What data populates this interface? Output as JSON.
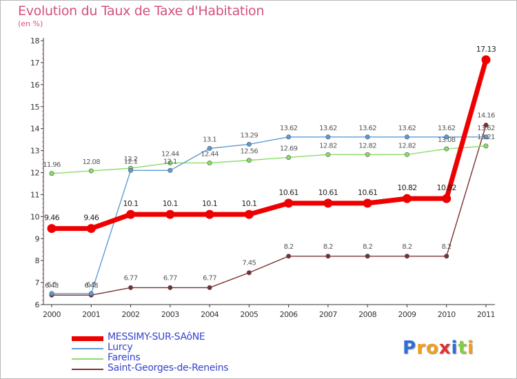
{
  "title": "Evolution du Taux de Taxe d'Habitation",
  "unit": "(en %)",
  "logo": [
    "P",
    "r",
    "o",
    "x",
    "i",
    "t",
    "i"
  ],
  "chart_data": {
    "type": "line",
    "title": "Evolution du Taux de Taxe d'Habitation",
    "ylabel": "(en %)",
    "x": [
      "2000",
      "2001",
      "2002",
      "2003",
      "2004",
      "2005",
      "2006",
      "2007",
      "2008",
      "2009",
      "2010",
      "2011"
    ],
    "yticks": [
      "6",
      "7",
      "8",
      "9",
      "10",
      "11",
      "12",
      "13",
      "14",
      "15",
      "16",
      "17",
      "18"
    ],
    "ylim": [
      6,
      18
    ],
    "grid": false,
    "legend": "bottom-left",
    "series": [
      {
        "name": "MESSIMY-SUR-SAôNE",
        "color": "#ee0000",
        "values": [
          9.46,
          9.46,
          10.1,
          10.1,
          10.1,
          10.1,
          10.61,
          10.61,
          10.61,
          10.82,
          10.82,
          17.13
        ],
        "labels": [
          "9.46",
          "9.46",
          "10.1",
          "10.1",
          "10.1",
          "10.1",
          "10.61",
          "10.61",
          "10.61",
          "10.82",
          "10.82",
          "17.13"
        ]
      },
      {
        "name": "Lurcy",
        "color": "#5b9bd5",
        "values": [
          6.5,
          6.5,
          12.1,
          12.1,
          13.1,
          13.29,
          13.62,
          13.62,
          13.62,
          13.62,
          13.62,
          13.62
        ],
        "labels": [
          "6.5",
          "6.5",
          "12.1",
          "12.1",
          "13.1",
          "13.29",
          "13.62",
          "13.62",
          "13.62",
          "13.62",
          "13.62",
          "13.62"
        ]
      },
      {
        "name": "Fareins",
        "color": "#88dd66",
        "values": [
          11.96,
          12.08,
          12.2,
          12.44,
          12.44,
          12.56,
          12.69,
          12.82,
          12.82,
          12.82,
          13.08,
          13.21
        ],
        "labels": [
          "11.96",
          "12.08",
          "12.2",
          "12.44",
          "12.44",
          "12.56",
          "12.69",
          "12.82",
          "12.82",
          "12.82",
          "13.08",
          "13.21"
        ]
      },
      {
        "name": "Saint-Georges-de-Reneins",
        "color": "#7a2f2f",
        "values": [
          6.43,
          6.43,
          6.77,
          6.77,
          6.77,
          7.45,
          8.2,
          8.2,
          8.2,
          8.2,
          8.2,
          14.16
        ],
        "labels": [
          "6.43",
          "6.43",
          "6.77",
          "6.77",
          "6.77",
          "7.45",
          "8.2",
          "8.2",
          "8.2",
          "8.2",
          "8.2",
          "14.16"
        ]
      }
    ]
  }
}
